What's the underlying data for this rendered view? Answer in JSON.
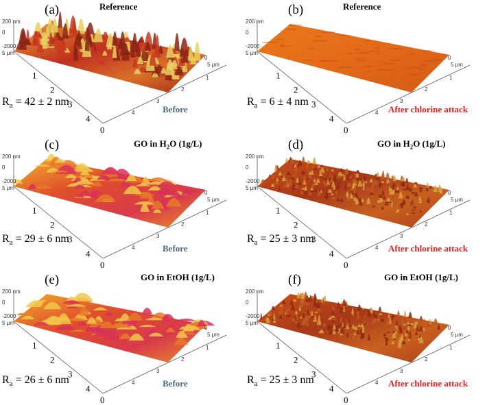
{
  "panels": [
    {
      "label": "(a)",
      "title": "Reference",
      "title_sub": "",
      "title_tail": "",
      "ra_value": "= 42 ± 2 nm",
      "condition": "Before",
      "condition_kind": "before",
      "surface": "rough"
    },
    {
      "label": "(b)",
      "title": "Reference",
      "title_sub": "",
      "title_tail": "",
      "ra_value": "= 6 ± 4 nm",
      "condition": "After chlorine attack",
      "condition_kind": "after",
      "surface": "flat"
    },
    {
      "label": "(c)",
      "title": "GO in H",
      "title_sub": "2",
      "title_tail": "O (1g/L)",
      "ra_value": "= 29 ± 6 nm",
      "condition": "Before",
      "condition_kind": "before",
      "surface": "wavy"
    },
    {
      "label": "(d)",
      "title": "GO in H",
      "title_sub": "2",
      "title_tail": "O (1g/L)",
      "ra_value": "= 25 ± 3 nm",
      "condition": "After chlorine attack",
      "condition_kind": "after",
      "surface": "fine"
    },
    {
      "label": "(e)",
      "title": "GO in EtOH (1g/L)",
      "title_sub": "",
      "title_tail": "",
      "ra_value": "= 26 ± 6 nm",
      "condition": "Before",
      "condition_kind": "before",
      "surface": "wavy"
    },
    {
      "label": "(f)",
      "title": "GO in EtOH (1g/L)",
      "title_sub": "",
      "title_tail": "",
      "ra_value": "= 25 ± 3 nm",
      "condition": "After chlorine attack",
      "condition_kind": "after",
      "surface": "fine"
    }
  ],
  "ra_symbol": "R",
  "ra_subscript": "a",
  "axis": {
    "z_top": "200 nm",
    "z_mid": "0",
    "z_bottom": "-200",
    "corner_zero": "0",
    "x_ticks": [
      "0",
      "1",
      "2",
      "3",
      "4"
    ],
    "x_end": "5 μm",
    "y_ticks": [
      "0",
      "1",
      "2",
      "3",
      "4"
    ],
    "y_end": "5 μm"
  },
  "colors": {
    "before": "#4f6878",
    "after": "#e02020",
    "surface_light": "#f0c030",
    "surface_mid": "#e07020",
    "surface_dark": "#a02818"
  }
}
